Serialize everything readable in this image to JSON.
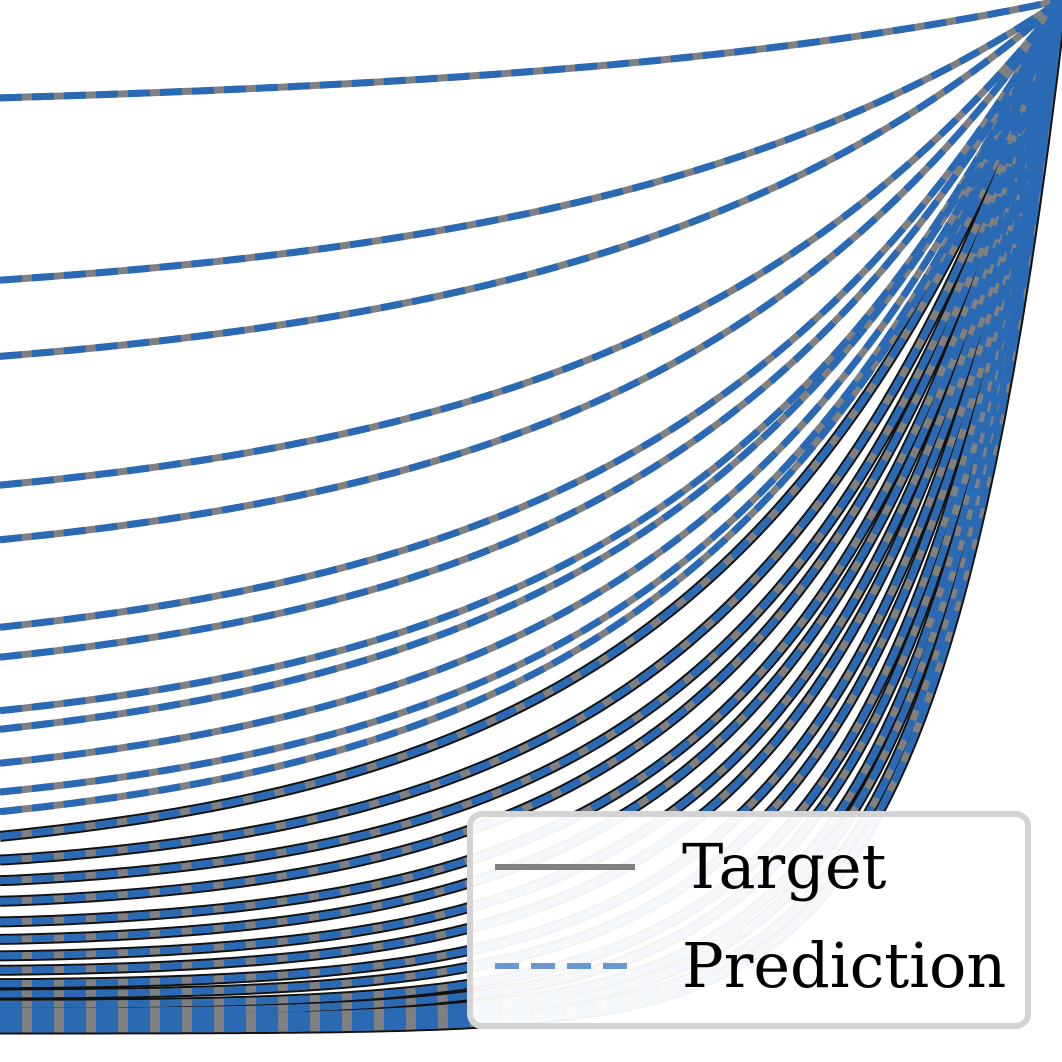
{
  "chart_data": {
    "type": "line",
    "title": "",
    "xlabel": "",
    "ylabel": "",
    "x_range": [
      0,
      1
    ],
    "y_range": [
      0,
      1
    ],
    "grid": false,
    "legend_position": "bottom-right",
    "curve_form": "y = c + (1 - c) * ((exp(k*x) - 1) / (exp(k) - 1))^p",
    "series": [
      {
        "name": "Target",
        "style": "solid",
        "color": "#808080",
        "curves": [
          {
            "c": 0.905,
            "k": 2.0,
            "p": 1.0
          },
          {
            "c": 0.728,
            "k": 2.3,
            "p": 1.0
          },
          {
            "c": 0.654,
            "k": 2.4,
            "p": 1.0
          },
          {
            "c": 0.529,
            "k": 2.6,
            "p": 1.0
          },
          {
            "c": 0.476,
            "k": 2.7,
            "p": 1.0
          },
          {
            "c": 0.391,
            "k": 2.8,
            "p": 1.0
          },
          {
            "c": 0.362,
            "k": 2.9,
            "p": 1.0
          },
          {
            "c": 0.31,
            "k": 3.0,
            "p": 1.0
          },
          {
            "c": 0.292,
            "k": 3.0,
            "p": 1.0
          },
          {
            "c": 0.259,
            "k": 3.1,
            "p": 1.0
          },
          {
            "c": 0.231,
            "k": 3.2,
            "p": 1.0
          },
          {
            "c": 0.212,
            "k": 3.2,
            "p": 1.0
          },
          {
            "c": 0.188,
            "k": 3.3,
            "p": 1.0
          },
          {
            "c": 0.165,
            "k": 3.3,
            "p": 1.1
          },
          {
            "c": 0.145,
            "k": 3.4,
            "p": 1.15
          },
          {
            "c": 0.125,
            "k": 3.4,
            "p": 1.2
          },
          {
            "c": 0.105,
            "k": 3.5,
            "p": 1.25
          },
          {
            "c": 0.088,
            "k": 3.5,
            "p": 1.3
          },
          {
            "c": 0.072,
            "k": 3.6,
            "p": 1.35
          },
          {
            "c": 0.058,
            "k": 3.6,
            "p": 1.42
          },
          {
            "c": 0.045,
            "k": 3.7,
            "p": 1.5
          },
          {
            "c": 0.035,
            "k": 3.7,
            "p": 1.6
          },
          {
            "c": 0.025,
            "k": 3.8,
            "p": 1.7
          },
          {
            "c": 0.018,
            "k": 3.8,
            "p": 1.8
          },
          {
            "c": 0.012,
            "k": 3.9,
            "p": 1.9
          },
          {
            "c": 0.008,
            "k": 3.9,
            "p": 2.0
          },
          {
            "c": 0.004,
            "k": 4.0,
            "p": 2.1
          },
          {
            "c": 0.001,
            "k": 4.0,
            "p": 2.2
          }
        ]
      },
      {
        "name": "Prediction",
        "style": "dashed",
        "color": "#2a6ab5",
        "same_curves_as": "Target"
      }
    ],
    "legend": {
      "entries": [
        {
          "label": "Target",
          "style": "solid",
          "color": "#808080"
        },
        {
          "label": "Prediction",
          "style": "dashed",
          "color": "#6a97cf"
        }
      ]
    },
    "colors": {
      "target": "#808080",
      "prediction": "#2a6ab5",
      "legend_prediction": "#6a97cf",
      "dense_band_dark": "#111111",
      "legend_border": "#d4d4d4"
    }
  }
}
